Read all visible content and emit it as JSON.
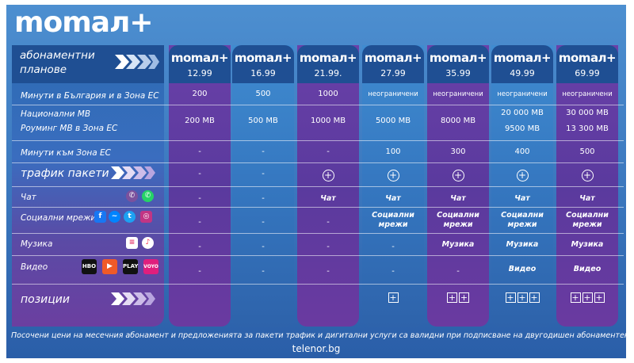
{
  "brand": "momaл+",
  "header_label": "абонаментни планове",
  "plans": [
    {
      "name": "momaл+",
      "price": "12.99",
      "style": "purple",
      "minutes": "200",
      "data": "200 MB",
      "eu_data": "",
      "eu_minutes": "-",
      "traffic": "-",
      "chat": "-",
      "social": "-",
      "music": "-",
      "video": "-",
      "positions": 0
    },
    {
      "name": "momaл+",
      "price": "16.99",
      "style": "blue",
      "minutes": "500",
      "data": "500 MB",
      "eu_data": "",
      "eu_minutes": "-",
      "traffic": "-",
      "chat": "-",
      "social": "-",
      "music": "-",
      "video": "-",
      "positions": 0
    },
    {
      "name": "momaл+",
      "price": "21.99.",
      "style": "purple",
      "minutes": "1000",
      "data": "1000 MB",
      "eu_data": "",
      "eu_minutes": "-",
      "traffic": "plus",
      "chat": "Чат",
      "social": "-",
      "music": "-",
      "video": "-",
      "positions": 0
    },
    {
      "name": "momaл+",
      "price": "27.99",
      "style": "blue",
      "minutes": "неограничени",
      "data": "5000 MB",
      "eu_data": "",
      "eu_minutes": "100",
      "traffic": "plus",
      "chat": "Чат",
      "social": "Социални мрежи",
      "music": "-",
      "video": "-",
      "positions": 1
    },
    {
      "name": "momaл+",
      "price": "35.99",
      "style": "purple",
      "minutes": "неограничени",
      "data": "8000 MB",
      "eu_data": "",
      "eu_minutes": "300",
      "traffic": "plus",
      "chat": "Чат",
      "social": "Социални мрежи",
      "music": "Музика",
      "video": "-",
      "positions": 2
    },
    {
      "name": "momaл+",
      "price": "49.99",
      "style": "blue",
      "minutes": "неограничени",
      "data": "20 000 MB",
      "eu_data": "9500 MB",
      "eu_minutes": "400",
      "traffic": "plus",
      "chat": "Чат",
      "social": "Социални мрежи",
      "music": "Музика",
      "video": "Видео",
      "positions": 3
    },
    {
      "name": "momaл+",
      "price": "69.99",
      "style": "purple",
      "minutes": "неограничени",
      "data": "30 000 MB",
      "eu_data": "13 300 MB",
      "eu_minutes": "500",
      "traffic": "plus",
      "chat": "Чат",
      "social": "Социални мрежи",
      "music": "Музика",
      "video": "Видео",
      "positions": 3
    }
  ],
  "rows": {
    "minutes": "Минути в България и в Зона ЕС",
    "national_mb": "Национални MB",
    "roaming_mb": "Роуминг MB в Зона ЕС",
    "eu_minutes": "Минути към Зона ЕС",
    "traffic": "трафик пакети",
    "chat": "Чат",
    "social": "Социални мрежи",
    "music": "Музика",
    "video": "Видео",
    "positions": "позиции"
  },
  "footer_note": "Посочени цени на месечния абонамент и предложенията за пакети трафик и дигитални услуги са валидни при подписване на двугодишен абонаментен договор..",
  "footer_url": "telenor.bg"
}
